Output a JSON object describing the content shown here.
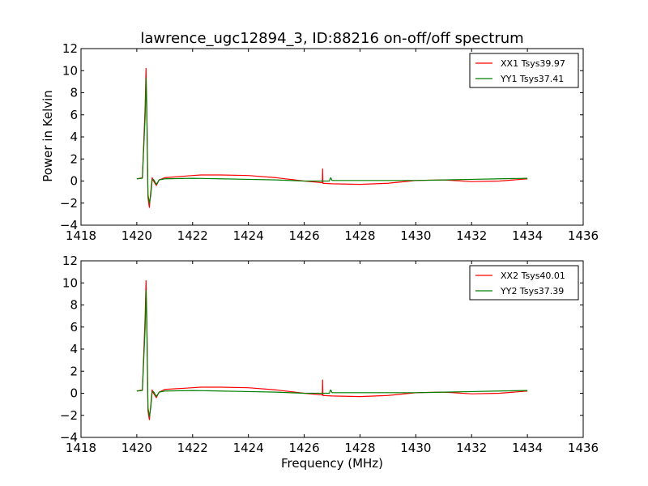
{
  "figure": {
    "title": "lawrence_ugc12894_3, ID:88216 on-off/off spectrum",
    "ylabel": "Power in Kelvin",
    "xlabel": "Frequency (MHz)"
  },
  "colors": {
    "red": "#ff0000",
    "green": "#007f00"
  },
  "chart_data": [
    {
      "type": "line",
      "title": "lawrence_ugc12894_3, ID:88216 on-off/off spectrum",
      "xlabel": "",
      "ylabel": "Power in Kelvin",
      "xlim": [
        1418,
        1436
      ],
      "ylim": [
        -4,
        12
      ],
      "xticks": [
        1418,
        1420,
        1422,
        1424,
        1426,
        1428,
        1430,
        1432,
        1434,
        1436
      ],
      "yticks": [
        -4,
        -2,
        0,
        2,
        4,
        6,
        8,
        10,
        12
      ],
      "grid": false,
      "legend_position": "top-right",
      "series": [
        {
          "name": "XX1 Tsys39.97",
          "color": "#ff0000",
          "x": [
            1420.0,
            1420.2,
            1420.3,
            1420.33,
            1420.36,
            1420.4,
            1420.45,
            1420.5,
            1420.55,
            1420.6,
            1420.7,
            1420.8,
            1421.0,
            1422.0,
            1422.3,
            1423.0,
            1424.0,
            1425.0,
            1426.0,
            1426.65,
            1426.66,
            1426.67,
            1427.0,
            1428.0,
            1429.0,
            1430.0,
            1431.0,
            1432.0,
            1433.0,
            1434.0
          ],
          "y": [
            0.2,
            0.3,
            6.8,
            10.2,
            6.5,
            -1.5,
            -2.4,
            -1.0,
            0.3,
            0.0,
            -0.4,
            0.1,
            0.3,
            0.5,
            0.55,
            0.55,
            0.5,
            0.3,
            0.0,
            -0.15,
            1.1,
            -0.2,
            -0.25,
            -0.3,
            -0.2,
            0.05,
            0.1,
            -0.05,
            0.0,
            0.2
          ]
        },
        {
          "name": "YY1 Tsys37.41",
          "color": "#007f00",
          "x": [
            1420.0,
            1420.2,
            1420.3,
            1420.33,
            1420.36,
            1420.4,
            1420.45,
            1420.5,
            1420.55,
            1420.6,
            1420.7,
            1420.8,
            1421.0,
            1422.0,
            1423.0,
            1424.0,
            1425.0,
            1426.0,
            1426.9,
            1426.95,
            1427.0,
            1428.0,
            1429.0,
            1430.0,
            1431.0,
            1432.0,
            1433.0,
            1434.0
          ],
          "y": [
            0.2,
            0.25,
            5.9,
            9.3,
            6.0,
            -1.2,
            -2.0,
            -1.3,
            0.1,
            0.15,
            -0.3,
            0.1,
            0.2,
            0.25,
            0.2,
            0.15,
            0.1,
            0.0,
            0.0,
            0.3,
            0.05,
            0.05,
            0.05,
            0.05,
            0.1,
            0.15,
            0.2,
            0.25
          ]
        }
      ]
    },
    {
      "type": "line",
      "title": "",
      "xlabel": "Frequency (MHz)",
      "ylabel": "",
      "xlim": [
        1418,
        1436
      ],
      "ylim": [
        -4,
        12
      ],
      "xticks": [
        1418,
        1420,
        1422,
        1424,
        1426,
        1428,
        1430,
        1432,
        1434,
        1436
      ],
      "yticks": [
        -4,
        -2,
        0,
        2,
        4,
        6,
        8,
        10,
        12
      ],
      "grid": false,
      "legend_position": "top-right",
      "series": [
        {
          "name": "XX2 Tsys40.01",
          "color": "#ff0000",
          "x": [
            1420.0,
            1420.2,
            1420.3,
            1420.33,
            1420.36,
            1420.4,
            1420.45,
            1420.5,
            1420.55,
            1420.6,
            1420.7,
            1420.8,
            1421.0,
            1422.0,
            1422.3,
            1423.0,
            1424.0,
            1425.0,
            1426.0,
            1426.65,
            1426.66,
            1426.67,
            1427.0,
            1428.0,
            1429.0,
            1430.0,
            1431.0,
            1432.0,
            1433.0,
            1434.0
          ],
          "y": [
            0.2,
            0.3,
            7.0,
            10.2,
            6.6,
            -1.6,
            -2.4,
            -1.1,
            0.3,
            0.0,
            -0.4,
            0.1,
            0.35,
            0.5,
            0.55,
            0.55,
            0.5,
            0.3,
            0.0,
            -0.15,
            1.2,
            -0.2,
            -0.25,
            -0.3,
            -0.2,
            0.05,
            0.1,
            -0.05,
            0.0,
            0.2
          ]
        },
        {
          "name": "YY2 Tsys37.39",
          "color": "#007f00",
          "x": [
            1420.0,
            1420.2,
            1420.3,
            1420.33,
            1420.36,
            1420.4,
            1420.45,
            1420.5,
            1420.55,
            1420.6,
            1420.7,
            1420.8,
            1421.0,
            1422.0,
            1423.0,
            1424.0,
            1425.0,
            1426.0,
            1426.9,
            1426.95,
            1427.0,
            1428.0,
            1429.0,
            1430.0,
            1431.0,
            1432.0,
            1433.0,
            1434.0
          ],
          "y": [
            0.2,
            0.25,
            6.0,
            9.3,
            6.1,
            -1.3,
            -2.1,
            -1.3,
            0.1,
            0.15,
            -0.3,
            0.1,
            0.2,
            0.25,
            0.2,
            0.15,
            0.1,
            0.0,
            0.0,
            0.3,
            0.05,
            0.05,
            0.05,
            0.05,
            0.1,
            0.15,
            0.2,
            0.25
          ]
        }
      ]
    }
  ]
}
